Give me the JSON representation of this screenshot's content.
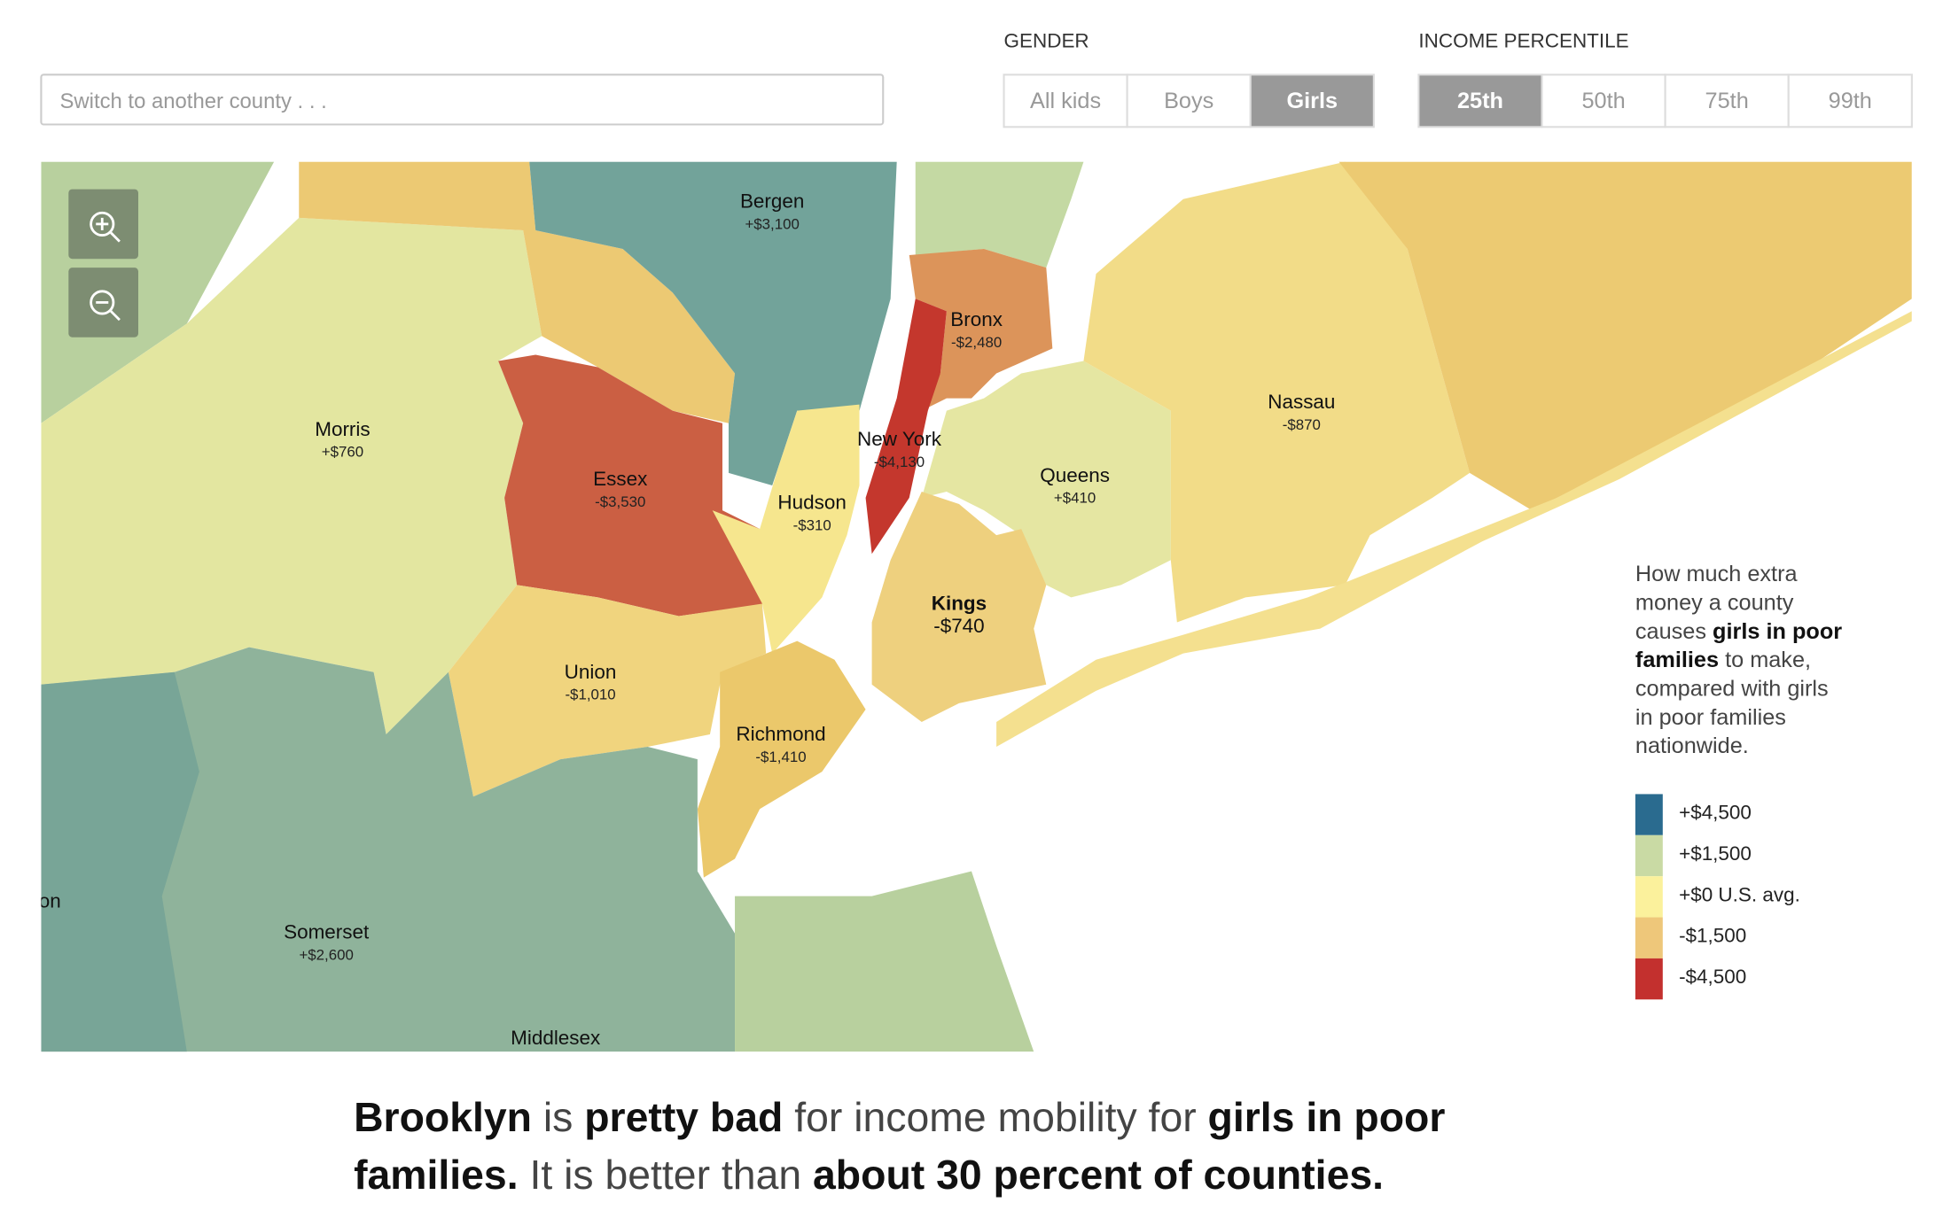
{
  "search": {
    "placeholder": "Switch to another county . . ."
  },
  "gender": {
    "label": "GENDER",
    "options": [
      "All kids",
      "Boys",
      "Girls"
    ],
    "selected": 2
  },
  "income_percentile": {
    "label": "INCOME PERCENTILE",
    "options": [
      "25th",
      "50th",
      "75th",
      "99th"
    ],
    "selected": 0
  },
  "map": {
    "counties": [
      {
        "name": "Bergen",
        "value": "+$3,100"
      },
      {
        "name": "Bronx",
        "value": "-$2,480"
      },
      {
        "name": "Morris",
        "value": "+$760"
      },
      {
        "name": "New York",
        "value": "-$4,130"
      },
      {
        "name": "Nassau",
        "value": "-$870"
      },
      {
        "name": "Essex",
        "value": "-$3,530"
      },
      {
        "name": "Queens",
        "value": "+$410"
      },
      {
        "name": "Hudson",
        "value": "-$310"
      },
      {
        "name": "Kings",
        "value": "-$740"
      },
      {
        "name": "Union",
        "value": "-$1,010"
      },
      {
        "name": "Richmond",
        "value": "-$1,410"
      },
      {
        "name": "Somerset",
        "value": "+$2,600"
      }
    ],
    "edge_labels": [
      "on",
      "Middlesex"
    ]
  },
  "legend": {
    "description": [
      [
        {
          "text": "How much extra",
          "bold": false
        }
      ],
      [
        {
          "text": "money a county",
          "bold": false
        }
      ],
      [
        {
          "text": "causes ",
          "bold": false
        },
        {
          "text": "girls in poor",
          "bold": true
        }
      ],
      [
        {
          "text": "families",
          "bold": true
        },
        {
          "text": " to make,",
          "bold": false
        }
      ],
      [
        {
          "text": "compared with girls",
          "bold": false
        }
      ],
      [
        {
          "text": "in poor families",
          "bold": false
        }
      ],
      [
        {
          "text": "nationwide.",
          "bold": false
        }
      ]
    ],
    "items": [
      "+$4,500",
      "+$1,500",
      "+$0 U.S. avg.",
      "-$1,500",
      "-$4,500"
    ],
    "colors": [
      "#2a6b8f",
      "#c9daa4",
      "#fbf19c",
      "#eec77a",
      "#c3302e"
    ]
  },
  "caption": [
    [
      {
        "text": "Brooklyn",
        "bold": true
      },
      {
        "text": " is ",
        "bold": false
      },
      {
        "text": "pretty bad",
        "bold": true
      },
      {
        "text": " for income mobility for ",
        "bold": false
      },
      {
        "text": "girls in poor",
        "bold": true
      }
    ],
    [
      {
        "text": "families.",
        "bold": true
      },
      {
        "text": " It is better than ",
        "bold": false
      },
      {
        "text": "about 30 percent of counties.",
        "bold": true
      }
    ]
  ]
}
